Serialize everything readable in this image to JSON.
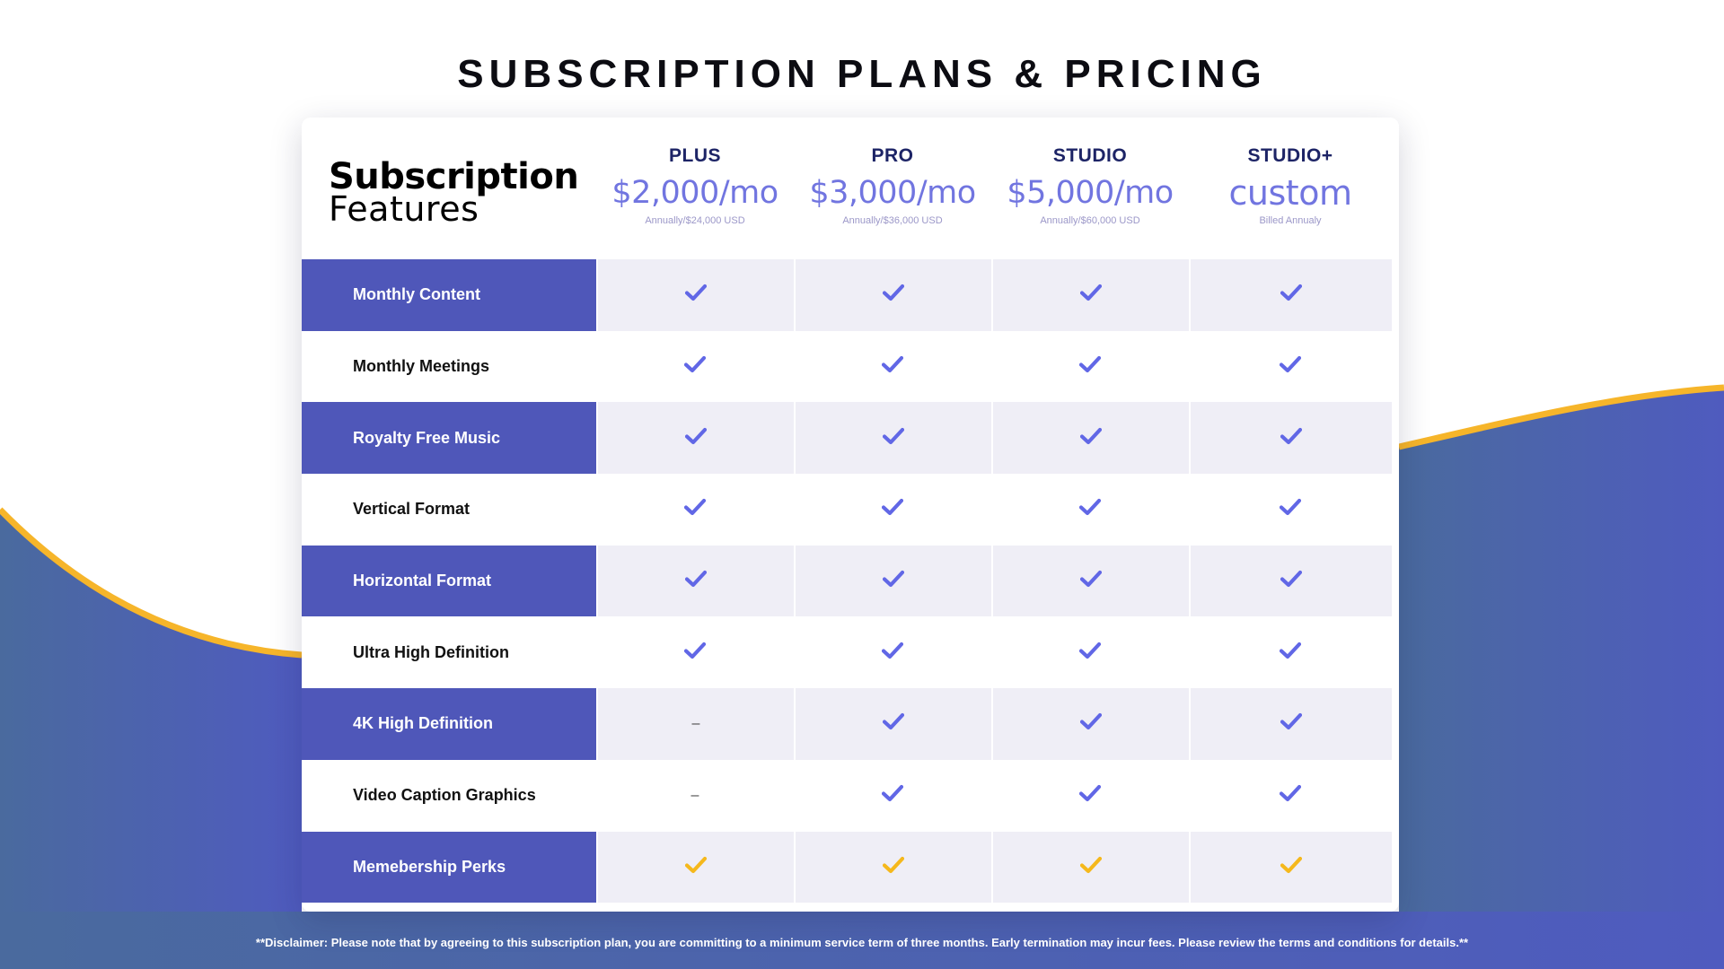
{
  "colors": {
    "accent": "#4f57b9",
    "check": "#6167e6",
    "perk_check": "#f5b81c",
    "wave_stroke": "#f6b52a",
    "wave_fill_left": "#4a6a9e",
    "wave_fill_right": "#4f5bbf"
  },
  "page": {
    "title": "SUBSCRIPTION PLANS & PRICING",
    "disclaimer": "**Disclaimer: Please note that by agreeing to this subscription plan, you are committing to a minimum service term of three months. Early termination may incur fees. Please review the terms and conditions for details.**"
  },
  "table": {
    "header": {
      "line1": "Subscription",
      "line2": "Features"
    },
    "plans": [
      {
        "name": "PLUS",
        "price": "$2,000/mo",
        "billing": "Annually/$24,000 USD"
      },
      {
        "name": "PRO",
        "price": "$3,000/mo",
        "billing": "Annually/$36,000 USD"
      },
      {
        "name": "STUDIO",
        "price": "$5,000/mo",
        "billing": "Annually/$60,000 USD"
      },
      {
        "name": "STUDIO+",
        "price": "custom",
        "billing": "Billed Annualy"
      }
    ],
    "features": [
      {
        "label": "Monthly Content",
        "values": [
          "check",
          "check",
          "check",
          "check"
        ]
      },
      {
        "label": "Monthly Meetings",
        "values": [
          "check",
          "check",
          "check",
          "check"
        ]
      },
      {
        "label": "Royalty Free Music",
        "values": [
          "check",
          "check",
          "check",
          "check"
        ]
      },
      {
        "label": "Vertical Format",
        "values": [
          "check",
          "check",
          "check",
          "check"
        ]
      },
      {
        "label": "Horizontal Format",
        "values": [
          "check",
          "check",
          "check",
          "check"
        ]
      },
      {
        "label": "Ultra High Definition",
        "values": [
          "check",
          "check",
          "check",
          "check"
        ]
      },
      {
        "label": "4K High Definition",
        "values": [
          "–",
          "check",
          "check",
          "check"
        ]
      },
      {
        "label": "Video Caption Graphics",
        "values": [
          "–",
          "check",
          "check",
          "check"
        ]
      },
      {
        "label": "Memebership Perks",
        "values": [
          "perk-check",
          "perk-check",
          "perk-check",
          "perk-check"
        ]
      }
    ]
  }
}
